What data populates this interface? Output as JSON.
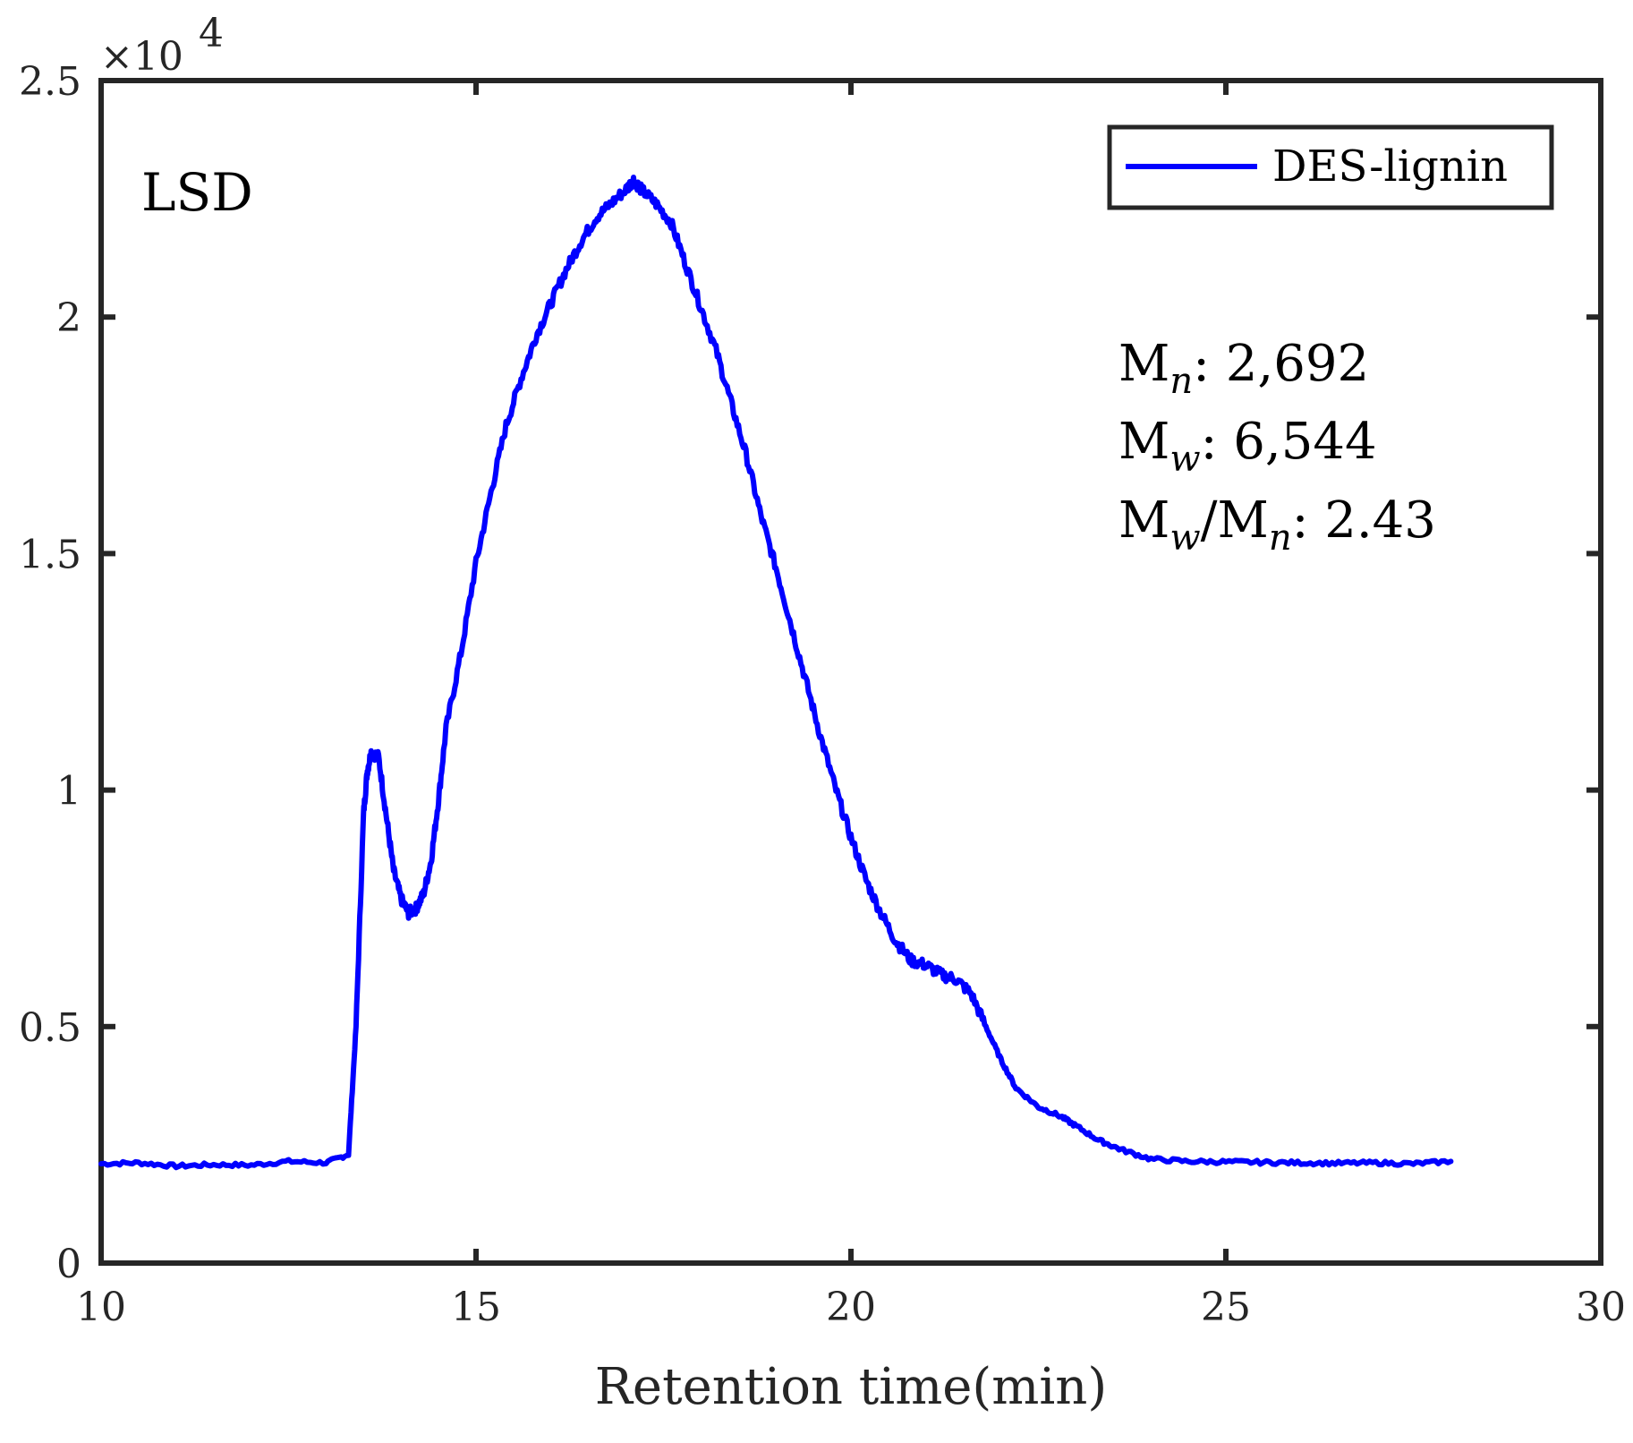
{
  "chart_data": {
    "type": "line",
    "title": "",
    "xlabel": "Retention time(min)",
    "ylabel": "",
    "xlim": [
      10,
      30
    ],
    "ylim": [
      0,
      25000
    ],
    "xticks": [
      10,
      15,
      20,
      25,
      30
    ],
    "xtick_labels": [
      "10",
      "15",
      "20",
      "25",
      "30"
    ],
    "yticks": [
      0,
      5000,
      10000,
      15000,
      20000,
      25000
    ],
    "ytick_labels": [
      "0",
      "0.5",
      "1",
      "1.5",
      "2",
      "2.5"
    ],
    "y_exponent_label": "×10",
    "y_exponent_power": "4",
    "grid": false,
    "legend_position": "top-right",
    "annotation": "LSD",
    "stats": {
      "mn_label": "M",
      "mn_sub": "n",
      "mn_value": ": 2,692",
      "mw_label": "M",
      "mw_sub": "w",
      "mw_value": ": 6,544",
      "pdi_label_a": "M",
      "pdi_sub_a": "w",
      "pdi_label_b": "/M",
      "pdi_sub_b": "n",
      "pdi_value": ": 2.43"
    },
    "series": [
      {
        "name": "DES-lignin",
        "color": "#0000ff",
        "x": [
          10.0,
          10.5,
          11.0,
          11.5,
          12.0,
          12.5,
          13.0,
          13.3,
          13.4,
          13.5,
          13.55,
          13.6,
          13.7,
          13.8,
          13.9,
          14.0,
          14.1,
          14.2,
          14.3,
          14.4,
          14.5,
          14.6,
          14.8,
          15.0,
          15.2,
          15.4,
          15.6,
          15.8,
          16.0,
          16.2,
          16.4,
          16.6,
          16.8,
          17.0,
          17.1,
          17.2,
          17.4,
          17.6,
          17.8,
          18.0,
          18.2,
          18.4,
          18.6,
          18.8,
          19.0,
          19.2,
          19.4,
          19.6,
          19.8,
          20.0,
          20.2,
          20.4,
          20.6,
          20.8,
          21.0,
          21.2,
          21.4,
          21.6,
          21.8,
          22.0,
          22.2,
          22.5,
          22.8,
          23.0,
          23.3,
          23.6,
          24.0,
          24.5,
          25.0,
          25.5,
          26.0,
          26.5,
          27.0,
          27.5,
          28.0
        ],
        "y": [
          2100,
          2120,
          2050,
          2080,
          2070,
          2150,
          2120,
          2300,
          5000,
          9500,
          10400,
          10800,
          10700,
          9500,
          8300,
          7700,
          7400,
          7500,
          7800,
          8500,
          9800,
          11300,
          12900,
          14800,
          16300,
          17700,
          18700,
          19600,
          20300,
          21000,
          21600,
          22100,
          22400,
          22700,
          22900,
          22700,
          22400,
          22000,
          21100,
          20200,
          19300,
          18200,
          17100,
          15800,
          14700,
          13500,
          12300,
          11100,
          10000,
          9000,
          8100,
          7400,
          6800,
          6400,
          6300,
          6100,
          6000,
          5700,
          5000,
          4300,
          3700,
          3300,
          3100,
          2900,
          2600,
          2400,
          2200,
          2150,
          2140,
          2130,
          2120,
          2110,
          2120,
          2100,
          2150
        ]
      }
    ]
  }
}
